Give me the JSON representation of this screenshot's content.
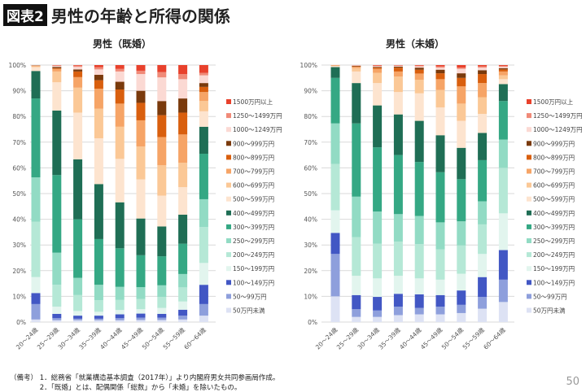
{
  "header": {
    "tag": "図表2",
    "title": "男性の年齢と所得の関係"
  },
  "notes": [
    "（備考） 1．総務省「就業構造基本調査（2017年）」より内閣府男女共同参画局作成。",
    "　　　　 2．「既婚」とは、配偶関係「総数」から「未婚」を除いたもの。"
  ],
  "page_number": "50",
  "chart_data": [
    {
      "type": "bar",
      "stacked": true,
      "title": "男性（既婚）",
      "xlabel": "",
      "ylabel": "",
      "ylim": [
        0,
        100
      ],
      "yticks": [
        "0%",
        "10%",
        "20%",
        "30%",
        "40%",
        "50%",
        "60%",
        "70%",
        "80%",
        "90%",
        "100%"
      ],
      "grid": true,
      "legend": "right",
      "categories": [
        "20〜24歳",
        "25〜29歳",
        "30〜34歳",
        "35〜39歳",
        "40〜44歳",
        "45〜49歳",
        "50〜54歳",
        "55〜59歳",
        "60〜64歳"
      ],
      "series": [
        {
          "name": "50万円未満",
          "color": "#dde2f4",
          "values": [
            1,
            0.7,
            0.7,
            0.7,
            0.7,
            0.8,
            0.8,
            1,
            2.5
          ]
        },
        {
          "name": "50〜99万円",
          "color": "#8e9fdc",
          "values": [
            6,
            0.8,
            0.6,
            0.6,
            0.8,
            0.9,
            0.9,
            1.5,
            4.5
          ]
        },
        {
          "name": "100〜149万円",
          "color": "#4257c4",
          "values": [
            4.3,
            1.7,
            1.2,
            1.2,
            1.5,
            1.6,
            1.5,
            2.3,
            7.5
          ]
        },
        {
          "name": "150〜199万円",
          "color": "#e2f5ee",
          "values": [
            6.2,
            2.8,
            1.8,
            1.5,
            1.7,
            1.7,
            2.3,
            3.2,
            8.5
          ]
        },
        {
          "name": "200〜249万円",
          "color": "#b5e8d6",
          "values": [
            21.5,
            8.5,
            6.2,
            4.5,
            3.9,
            4,
            4.3,
            5.5,
            14
          ]
        },
        {
          "name": "250〜299万円",
          "color": "#92dbc4",
          "values": [
            17.3,
            12.5,
            6.7,
            6,
            5.1,
            4.6,
            4.5,
            5.2,
            10.8
          ]
        },
        {
          "name": "300〜399万円",
          "color": "#35a884",
          "values": [
            30.7,
            30.2,
            22.8,
            17.8,
            15,
            12.4,
            11.3,
            11.8,
            17.7
          ]
        },
        {
          "name": "400〜499万円",
          "color": "#1f6e55",
          "values": [
            10.7,
            25.1,
            23.3,
            21.4,
            17.9,
            14.3,
            11.6,
            11.3,
            10.5
          ]
        },
        {
          "name": "500〜599万円",
          "color": "#fde4cf",
          "values": [
            1.5,
            11,
            18.2,
            17.8,
            16.9,
            15.2,
            12,
            10.7,
            6
          ]
        },
        {
          "name": "600〜699万円",
          "color": "#fbc896",
          "values": [
            0.3,
            4.2,
            9.7,
            11.5,
            12.5,
            12.8,
            11.8,
            9.5,
            4
          ]
        },
        {
          "name": "700〜799万円",
          "color": "#f6a466",
          "values": [
            0.2,
            1,
            4.1,
            7.8,
            9,
            10.2,
            11,
            11,
            3.5
          ]
        },
        {
          "name": "800〜899万円",
          "color": "#d95f0e",
          "values": [
            0.1,
            0.3,
            2.2,
            3.3,
            5.5,
            6.8,
            8.5,
            8.5,
            2
          ]
        },
        {
          "name": "900〜999万円",
          "color": "#7a3a0c",
          "values": [
            0.1,
            0.5,
            0.8,
            2.1,
            3,
            4.7,
            5.5,
            5.5,
            1.5
          ]
        },
        {
          "name": "1000〜1249万円",
          "color": "#fbd9d3",
          "values": [
            0.1,
            0.4,
            1,
            2.1,
            4,
            6.5,
            9.2,
            7.5,
            3
          ]
        },
        {
          "name": "1250〜1499万円",
          "color": "#f08a78",
          "values": [
            0,
            0.2,
            0.5,
            0.9,
            1,
            1.3,
            2.1,
            2,
            1
          ]
        },
        {
          "name": "1500万円以上",
          "color": "#e8412c",
          "values": [
            0,
            0.1,
            0.2,
            0.8,
            1.5,
            2.2,
            2.7,
            3.5,
            3
          ]
        }
      ]
    },
    {
      "type": "bar",
      "stacked": true,
      "title": "男性（未婚）",
      "xlabel": "",
      "ylabel": "",
      "ylim": [
        0,
        100
      ],
      "yticks": [
        "0%",
        "10%",
        "20%",
        "30%",
        "40%",
        "50%",
        "60%",
        "70%",
        "80%",
        "90%",
        "100%"
      ],
      "grid": true,
      "legend": "right",
      "categories": [
        "20〜24歳",
        "25〜29歳",
        "30〜34歳",
        "35〜39歳",
        "40〜44歳",
        "45〜49歳",
        "50〜54歳",
        "55〜59歳",
        "60〜64歳"
      ],
      "series": [
        {
          "name": "50万円未満",
          "color": "#dde2f4",
          "values": [
            10,
            2,
            2,
            2.7,
            3,
            3,
            3.5,
            5.2,
            7.8
          ]
        },
        {
          "name": "50〜99万円",
          "color": "#8e9fdc",
          "values": [
            16.5,
            3,
            2.5,
            3.3,
            2.5,
            3,
            3.2,
            4.6,
            8.7
          ]
        },
        {
          "name": "100〜149万円",
          "color": "#4257c4",
          "values": [
            8.2,
            5.5,
            5.3,
            5,
            5.3,
            4.5,
            5.6,
            7.7,
            11.5
          ]
        },
        {
          "name": "150〜199万円",
          "color": "#e2f5ee",
          "values": [
            8.8,
            7.5,
            7.2,
            7,
            6.2,
            6,
            6.5,
            9,
            14.3
          ]
        },
        {
          "name": "200〜249万円",
          "color": "#b5e8d6",
          "values": [
            18,
            15,
            13.5,
            13.3,
            13.3,
            11.8,
            11,
            11.5,
            17.7
          ]
        },
        {
          "name": "250〜299万円",
          "color": "#92dbc4",
          "values": [
            15.8,
            15.8,
            12.5,
            10.7,
            11,
            10.5,
            9.4,
            9,
            11
          ]
        },
        {
          "name": "300〜399万円",
          "color": "#35a884",
          "values": [
            17.7,
            28.5,
            25,
            23,
            21,
            19.5,
            16.4,
            16,
            15
          ]
        },
        {
          "name": "400〜499万円",
          "color": "#1f6e55",
          "values": [
            4.2,
            15.7,
            16.3,
            15.8,
            16,
            14.4,
            12.2,
            10.6,
            6.6
          ]
        },
        {
          "name": "500〜599万円",
          "color": "#fde4cf",
          "values": [
            0.4,
            4.5,
            8.7,
            8.7,
            10.7,
            10.8,
            10.5,
            7.4,
            1.9
          ]
        },
        {
          "name": "600〜699万円",
          "color": "#fbc896",
          "values": [
            0.2,
            1.3,
            4,
            6,
            5.3,
            6.8,
            6.7,
            6.5,
            1.5
          ]
        },
        {
          "name": "700〜799万円",
          "color": "#f6a466",
          "values": [
            0.1,
            0.5,
            1.5,
            2,
            2.4,
            4.2,
            6.7,
            5.5,
            1.5
          ]
        },
        {
          "name": "800〜899万円",
          "color": "#d95f0e",
          "values": [
            0.1,
            0.2,
            0.5,
            1.5,
            1.5,
            2.3,
            3.3,
            3.5,
            0.8
          ]
        },
        {
          "name": "900〜999万円",
          "color": "#7a3a0c",
          "values": [
            0,
            0.2,
            0.3,
            0.4,
            0.8,
            1.4,
            1.8,
            1.5,
            0.5
          ]
        },
        {
          "name": "1000〜1249万円",
          "color": "#fbd9d3",
          "values": [
            0.1,
            0.2,
            0.3,
            0.3,
            0.5,
            0.8,
            1.7,
            1,
            0.5
          ]
        },
        {
          "name": "1250〜1499万円",
          "color": "#f08a78",
          "values": [
            0,
            0.1,
            0.2,
            0.2,
            0.3,
            0.5,
            0.5,
            0.5,
            0.4
          ]
        },
        {
          "name": "1500万円以上",
          "color": "#e8412c",
          "values": [
            0,
            0,
            0.2,
            0.1,
            0.2,
            0.5,
            1,
            0.5,
            0.3
          ]
        }
      ]
    }
  ]
}
